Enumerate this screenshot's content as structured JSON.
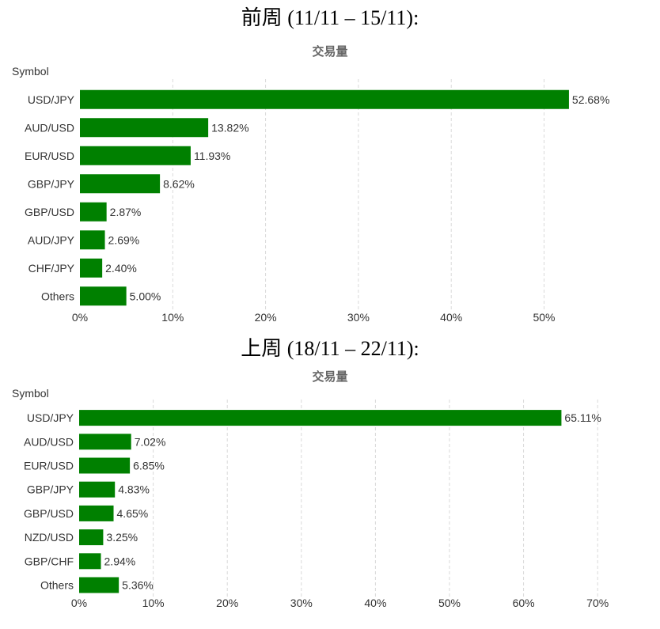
{
  "charts": [
    {
      "heading": "前周 (11/11 – 15/11):",
      "chart_title": "交易量",
      "axis_title": "Symbol",
      "bar_color": "#008000",
      "grid_color": "#d9d9d9"
    },
    {
      "heading": "上周 (18/11 – 22/11):",
      "chart_title": "交易量",
      "axis_title": "Symbol",
      "bar_color": "#008000",
      "grid_color": "#d9d9d9"
    }
  ],
  "chart_data": [
    {
      "type": "bar",
      "orientation": "horizontal",
      "title": "交易量",
      "ylabel": "Symbol",
      "xlim": [
        0,
        55
      ],
      "x_ticks": [
        "0%",
        "10%",
        "20%",
        "30%",
        "40%",
        "50%"
      ],
      "x_tick_values": [
        0,
        10,
        20,
        30,
        40,
        50
      ],
      "categories": [
        "USD/JPY",
        "AUD/USD",
        "EUR/USD",
        "GBP/JPY",
        "GBP/USD",
        "AUD/JPY",
        "CHF/JPY",
        "Others"
      ],
      "values": [
        52.68,
        13.82,
        11.93,
        8.62,
        2.87,
        2.69,
        2.4,
        5.0
      ],
      "labels": [
        "52.68%",
        "13.82%",
        "11.93%",
        "8.62%",
        "2.87%",
        "2.69%",
        "2.40%",
        "5.00%"
      ],
      "grid": true
    },
    {
      "type": "bar",
      "orientation": "horizontal",
      "title": "交易量",
      "ylabel": "Symbol",
      "xlim": [
        0,
        70
      ],
      "x_ticks": [
        "0%",
        "10%",
        "20%",
        "30%",
        "40%",
        "50%",
        "60%",
        "70%"
      ],
      "x_tick_values": [
        0,
        10,
        20,
        30,
        40,
        50,
        60,
        70
      ],
      "categories": [
        "USD/JPY",
        "AUD/USD",
        "EUR/USD",
        "GBP/JPY",
        "GBP/USD",
        "NZD/USD",
        "GBP/CHF",
        "Others"
      ],
      "values": [
        65.11,
        7.02,
        6.85,
        4.83,
        4.65,
        3.25,
        2.94,
        5.36
      ],
      "labels": [
        "65.11%",
        "7.02%",
        "6.85%",
        "4.83%",
        "4.65%",
        "3.25%",
        "2.94%",
        "5.36%"
      ],
      "grid": true
    }
  ]
}
